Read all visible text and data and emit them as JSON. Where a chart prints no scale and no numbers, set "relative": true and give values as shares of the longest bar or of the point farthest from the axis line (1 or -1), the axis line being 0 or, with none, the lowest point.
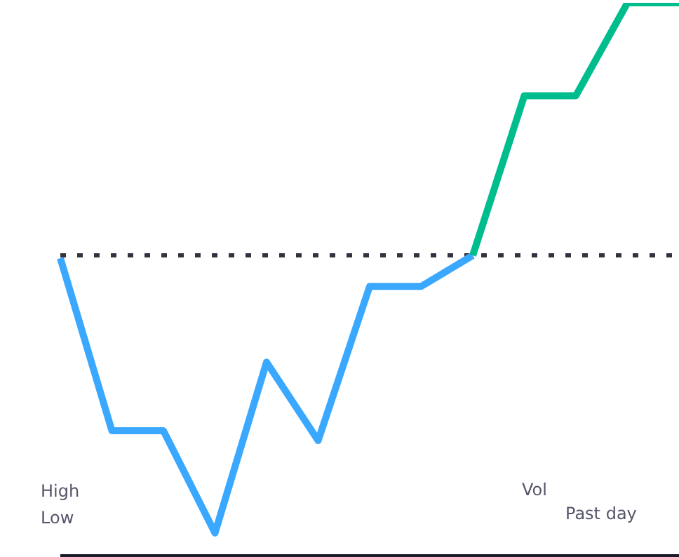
{
  "chart_data": {
    "type": "line",
    "relative": true,
    "categories": [
      null,
      null,
      null,
      null,
      null,
      null,
      null,
      null,
      null,
      null,
      null,
      null,
      null
    ],
    "series": [
      {
        "color": "#3aa8ff",
        "values": [
          0.538,
          0.226,
          0.226,
          0.041,
          0.35,
          0.208,
          0.487,
          0.487,
          0.543,
          null,
          null,
          null,
          null
        ]
      },
      {
        "color": "#00bd8e",
        "values": [
          null,
          null,
          null,
          null,
          null,
          null,
          null,
          null,
          0.543,
          0.832,
          0.832,
          1,
          1
        ]
      }
    ],
    "ref_lines": [
      {
        "axis": "y",
        "value": 0.543,
        "color": "#33333f",
        "line_style": "dotted"
      }
    ],
    "annotations": [
      "High",
      "Low",
      "Vol",
      "Past day"
    ],
    "legend": false,
    "grid": false,
    "marker": "none",
    "line_style": "solid"
  }
}
